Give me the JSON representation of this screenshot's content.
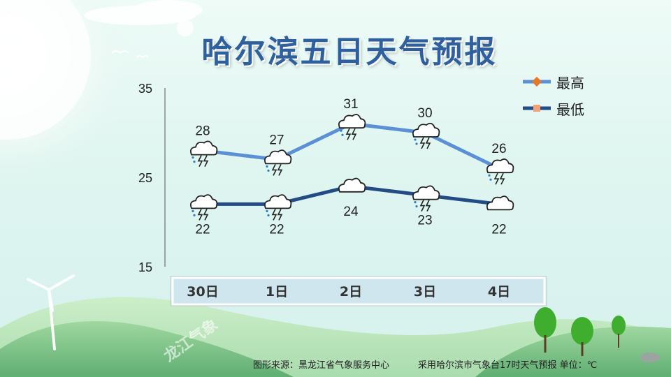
{
  "title": "哈尔滨五日天气预报",
  "footer": {
    "source": "图形来源：黑龙江省气象服务中心",
    "note": "采用哈尔滨市气象台17时天气预报 单位：℃"
  },
  "watermark": "龙江气象",
  "legend": [
    {
      "label": "最高",
      "color": "#5b8fd6",
      "marker_color": "#e07b2c"
    },
    {
      "label": "最低",
      "color": "#234c86",
      "marker_color": "#f2a27a"
    }
  ],
  "chart_data": {
    "type": "line",
    "title": "哈尔滨五日天气预报",
    "categories": [
      "30日",
      "1日",
      "2日",
      "3日",
      "4日"
    ],
    "ylim": [
      15,
      35
    ],
    "yticks": [
      "15",
      "25",
      "35"
    ],
    "series": [
      {
        "name": "最高",
        "values": [
          28,
          27,
          31,
          30,
          26
        ],
        "color": "#5b8fd6",
        "icons": [
          "thunder-rain-icon",
          "thunder-rain-icon",
          "thunder-rain-icon",
          "thunder-rain-icon",
          "thunder-rain-icon"
        ]
      },
      {
        "name": "最低",
        "values": [
          22,
          22,
          24,
          23,
          22
        ],
        "color": "#234c86",
        "icons": [
          "thunder-rain-icon",
          "thunder-rain-icon",
          "cloud-icon",
          "thunder-rain-icon",
          "cloud-icon"
        ]
      }
    ],
    "legend_position": "top-right",
    "grid": false
  }
}
